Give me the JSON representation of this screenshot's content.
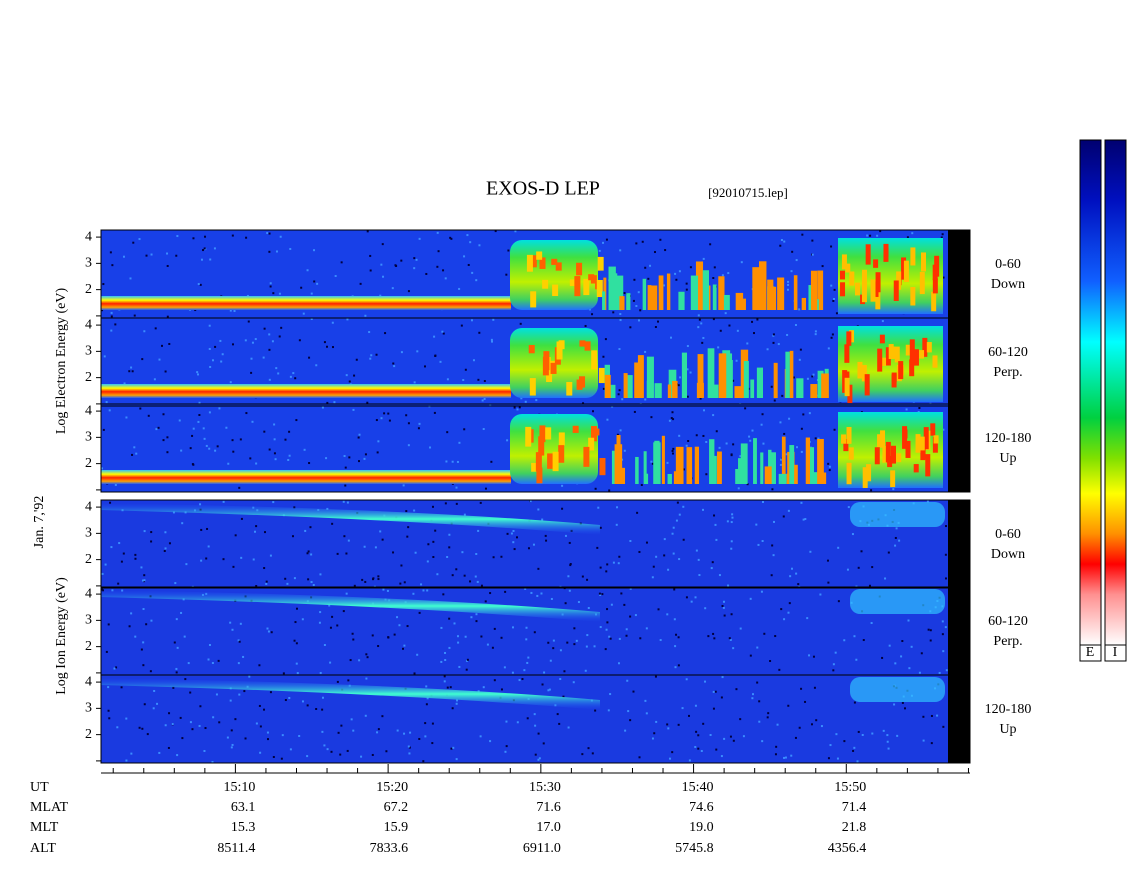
{
  "chart_data": {
    "type": "spectrogram",
    "title": "EXOS-D LEP",
    "subtitle": "[92010715.lep]",
    "date_label": "Jan. 7,'92",
    "electron_axis_label": "Log   Electron   Energy (eV)",
    "ion_axis_label": "Log   Ion   Energy (eV)",
    "panels": [
      {
        "species": "electron",
        "range": "0-60",
        "direction": "Down"
      },
      {
        "species": "electron",
        "range": "60-120",
        "direction": "Perp."
      },
      {
        "species": "electron",
        "range": "120-180",
        "direction": "Up"
      },
      {
        "species": "ion",
        "range": "0-60",
        "direction": "Down"
      },
      {
        "species": "ion",
        "range": "60-120",
        "direction": "Perp."
      },
      {
        "species": "ion",
        "range": "120-180",
        "direction": "Up"
      }
    ],
    "ylim": [
      0.92,
      4.27
    ],
    "yticks": [
      1,
      2,
      3,
      4
    ],
    "ytick_labels_shown": [
      2,
      3,
      4
    ],
    "xlim": [
      901.2,
      958.1
    ],
    "xticks": [
      {
        "value": 910,
        "label": "15:10"
      },
      {
        "value": 920,
        "label": "15:20"
      },
      {
        "value": 930,
        "label": "15:30"
      },
      {
        "value": 940,
        "label": "15:40"
      },
      {
        "value": 950,
        "label": "15:50"
      }
    ],
    "minor_xticks": [
      902,
      904,
      906,
      908,
      912,
      914,
      916,
      918,
      922,
      924,
      926,
      928,
      932,
      934,
      936,
      938,
      942,
      944,
      946,
      948,
      952,
      954,
      956,
      958
    ],
    "rows": [
      {
        "name": "UT",
        "values": []
      },
      {
        "name": "MLAT",
        "values": [
          "63.1",
          "67.2",
          "71.6",
          "74.6",
          "71.4"
        ]
      },
      {
        "name": "MLT",
        "values": [
          "15.3",
          "15.9",
          "17.0",
          "19.0",
          "21.8"
        ]
      },
      {
        "name": "ALT",
        "values": [
          "8511.4",
          "7833.6",
          "6911.0",
          "5745.8",
          "4356.4"
        ]
      }
    ],
    "colorbar_labels": [
      "E",
      "I"
    ]
  }
}
